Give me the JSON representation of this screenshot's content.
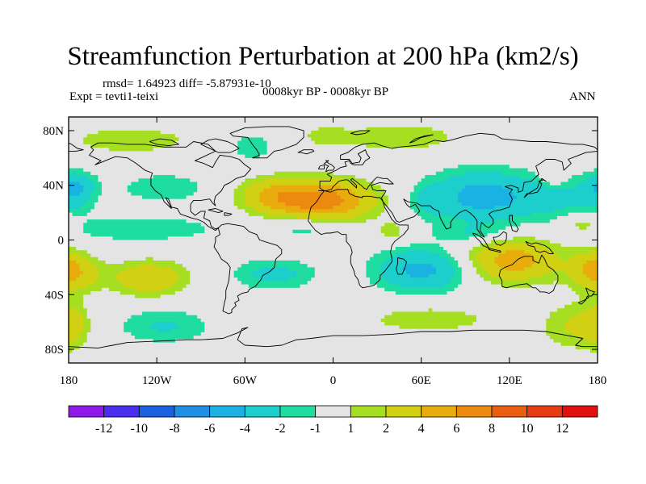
{
  "title": "Streamfunction Perturbation at 200 hPa (km2/s)",
  "stats": "rmsd= 1.64923 diff= -5.87931e-10",
  "experiment": "Expt = tevti1-teixi",
  "period": "0008kyr BP - 0008kyr BP",
  "season": "ANN",
  "axes": {
    "y_ticks": [
      {
        "label": "80N",
        "lat": 80
      },
      {
        "label": "40N",
        "lat": 40
      },
      {
        "label": "0",
        "lat": 0
      },
      {
        "label": "40S",
        "lat": -40
      },
      {
        "label": "80S",
        "lat": -80
      }
    ],
    "x_ticks": [
      {
        "label": "180",
        "lon": -180
      },
      {
        "label": "120W",
        "lon": -120
      },
      {
        "label": "60W",
        "lon": -60
      },
      {
        "label": "0",
        "lon": 0
      },
      {
        "label": "60E",
        "lon": 60
      },
      {
        "label": "120E",
        "lon": 120
      },
      {
        "label": "180",
        "lon": 180
      }
    ],
    "lon_range": [
      -180,
      180
    ],
    "lat_range": [
      -90,
      90
    ]
  },
  "colorbar": {
    "labels": [
      "-12",
      "-10",
      "-8",
      "-6",
      "-4",
      "-2",
      "-1",
      "1",
      "2",
      "4",
      "6",
      "8",
      "10",
      "12"
    ],
    "colors": [
      "#8f1ae8",
      "#4a2ff0",
      "#1c5fe0",
      "#1f8fe6",
      "#19b2e2",
      "#1ccfcc",
      "#1fdca0",
      "#e4e4e4",
      "#a6de22",
      "#d2d012",
      "#e8ad0c",
      "#ec8a10",
      "#ea5c10",
      "#e83a10",
      "#e01010"
    ]
  },
  "chart_data": {
    "type": "contour_map",
    "variable": "Streamfunction Perturbation at 200 hPa",
    "units": "km2/s",
    "levels": [
      -12,
      -10,
      -8,
      -6,
      -4,
      -2,
      -1,
      1,
      2,
      4,
      6,
      8,
      10,
      12
    ],
    "centers": [
      {
        "lon": -8,
        "lat": 29,
        "amp": 7.2,
        "sx": 24,
        "sy": 10
      },
      {
        "lon": -42,
        "lat": 33,
        "amp": 3.0,
        "sx": 16,
        "sy": 9
      },
      {
        "lon": -138,
        "lat": 73,
        "amp": 1.8,
        "sx": 30,
        "sy": 7
      },
      {
        "lon": 45,
        "lat": 75,
        "amp": 1.8,
        "sx": 30,
        "sy": 8
      },
      {
        "lon": -5,
        "lat": 76,
        "amp": 1.5,
        "sx": 10,
        "sy": 5
      },
      {
        "lon": 102,
        "lat": 32,
        "amp": -5.0,
        "sx": 26,
        "sy": 13
      },
      {
        "lon": 160,
        "lat": 30,
        "amp": -2.0,
        "sx": 22,
        "sy": 12
      },
      {
        "lon": 150,
        "lat": 47,
        "amp": 1.6,
        "sx": 6,
        "sy": 6
      },
      {
        "lon": -55,
        "lat": 68,
        "amp": -1.6,
        "sx": 12,
        "sy": 8
      },
      {
        "lon": -175,
        "lat": 42,
        "amp": -1.6,
        "sx": 10,
        "sy": 6
      },
      {
        "lon": -175,
        "lat": 35,
        "amp": -2.6,
        "sx": 8,
        "sy": 9
      },
      {
        "lon": -115,
        "lat": 38,
        "amp": -1.8,
        "sx": 22,
        "sy": 8
      },
      {
        "lon": -130,
        "lat": 8,
        "amp": -1.8,
        "sx": 40,
        "sy": 7
      },
      {
        "lon": -20,
        "lat": 9,
        "amp": -1.7,
        "sx": 16,
        "sy": 6
      },
      {
        "lon": 65,
        "lat": 28,
        "amp": -1.6,
        "sx": 8,
        "sy": 8
      },
      {
        "lon": 170,
        "lat": 12,
        "amp": 2.3,
        "sx": 10,
        "sy": 6
      },
      {
        "lon": 95,
        "lat": 5,
        "amp": -1.7,
        "sx": 18,
        "sy": 5
      },
      {
        "lon": 122,
        "lat": -15,
        "amp": 5.0,
        "sx": 22,
        "sy": 11
      },
      {
        "lon": 178,
        "lat": -18,
        "amp": 2.3,
        "sx": 10,
        "sy": 9
      },
      {
        "lon": -178,
        "lat": -25,
        "amp": 3.2,
        "sx": 14,
        "sy": 9
      },
      {
        "lon": -125,
        "lat": -28,
        "amp": 3.6,
        "sx": 18,
        "sy": 9
      },
      {
        "lon": -40,
        "lat": -25,
        "amp": -2.6,
        "sx": 20,
        "sy": 8
      },
      {
        "lon": 60,
        "lat": -22,
        "amp": -4.6,
        "sx": 22,
        "sy": 11
      },
      {
        "lon": 40,
        "lat": 6,
        "amp": 1.6,
        "sx": 7,
        "sy": 6
      },
      {
        "lon": 65,
        "lat": -58,
        "amp": 1.8,
        "sx": 30,
        "sy": 7
      },
      {
        "lon": -115,
        "lat": -63,
        "amp": -2.2,
        "sx": 22,
        "sy": 9
      },
      {
        "lon": 165,
        "lat": -63,
        "amp": 2.2,
        "sx": 16,
        "sy": 12
      },
      {
        "lon": -178,
        "lat": -62,
        "amp": 2.3,
        "sx": 8,
        "sy": 12
      }
    ]
  }
}
